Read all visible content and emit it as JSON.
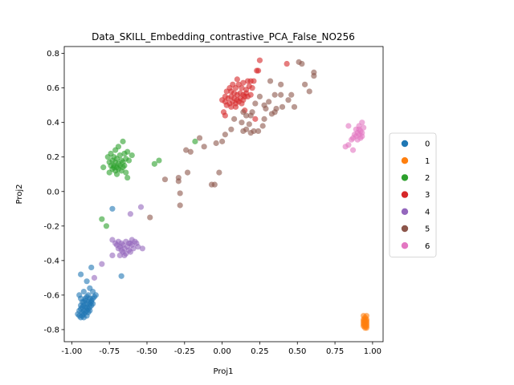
{
  "chart_data": {
    "type": "scatter",
    "title": "Data_SKILL_Embedding_contrastive_PCA_False_NO256",
    "xlabel": "Proj1",
    "ylabel": "Proj2",
    "xlim": [
      -1.05,
      1.07
    ],
    "ylim": [
      -0.87,
      0.84
    ],
    "xticks": [
      "-1.00",
      "-0.75",
      "-0.50",
      "-0.25",
      "0.00",
      "0.25",
      "0.50",
      "0.75",
      "1.00"
    ],
    "xtick_values": [
      -1.0,
      -0.75,
      -0.5,
      -0.25,
      0.0,
      0.25,
      0.5,
      0.75,
      1.0
    ],
    "yticks": [
      "-0.8",
      "-0.6",
      "-0.4",
      "-0.2",
      "0.0",
      "0.2",
      "0.4",
      "0.6",
      "0.8"
    ],
    "ytick_values": [
      -0.8,
      -0.6,
      -0.4,
      -0.2,
      0.0,
      0.2,
      0.4,
      0.6,
      0.8
    ],
    "legend_position": "center-right outside",
    "grid": false,
    "series": [
      {
        "name": "0",
        "color": "#1f77b4",
        "points": [
          [
            -0.94,
            -0.48
          ],
          [
            -0.87,
            -0.44
          ],
          [
            -0.73,
            -0.1
          ],
          [
            -0.67,
            -0.49
          ],
          [
            -0.9,
            -0.52
          ],
          [
            -0.86,
            -0.58
          ],
          [
            -0.88,
            -0.56
          ],
          [
            -0.95,
            -0.6
          ],
          [
            -0.92,
            -0.58
          ],
          [
            -0.94,
            -0.62
          ],
          [
            -0.93,
            -0.64
          ],
          [
            -0.92,
            -0.66
          ],
          [
            -0.91,
            -0.63
          ],
          [
            -0.9,
            -0.61
          ],
          [
            -0.89,
            -0.6
          ],
          [
            -0.88,
            -0.62
          ],
          [
            -0.87,
            -0.63
          ],
          [
            -0.86,
            -0.62
          ],
          [
            -0.85,
            -0.61
          ],
          [
            -0.84,
            -0.6
          ],
          [
            -0.94,
            -0.68
          ],
          [
            -0.93,
            -0.7
          ],
          [
            -0.92,
            -0.71
          ],
          [
            -0.91,
            -0.7
          ],
          [
            -0.9,
            -0.69
          ],
          [
            -0.89,
            -0.68
          ],
          [
            -0.88,
            -0.67
          ],
          [
            -0.87,
            -0.66
          ],
          [
            -0.86,
            -0.65
          ],
          [
            -0.95,
            -0.72
          ],
          [
            -0.94,
            -0.73
          ],
          [
            -0.93,
            -0.72
          ],
          [
            -0.92,
            -0.69
          ],
          [
            -0.91,
            -0.67
          ],
          [
            -0.9,
            -0.65
          ],
          [
            -0.89,
            -0.64
          ],
          [
            -0.88,
            -0.65
          ],
          [
            -0.95,
            -0.69
          ],
          [
            -0.96,
            -0.71
          ],
          [
            -0.93,
            -0.67
          ],
          [
            -0.92,
            -0.73
          ],
          [
            -0.9,
            -0.72
          ],
          [
            -0.89,
            -0.7
          ],
          [
            -0.87,
            -0.64
          ],
          [
            -0.91,
            -0.62
          ],
          [
            -0.9,
            -0.67
          ],
          [
            -0.94,
            -0.66
          ],
          [
            -0.92,
            -0.64
          ],
          [
            -0.88,
            -0.69
          ]
        ]
      },
      {
        "name": "1",
        "color": "#ff7f0e",
        "points": [
          [
            0.94,
            -0.72
          ],
          [
            0.95,
            -0.73
          ],
          [
            0.96,
            -0.72
          ],
          [
            0.94,
            -0.74
          ],
          [
            0.95,
            -0.75
          ],
          [
            0.96,
            -0.74
          ],
          [
            0.94,
            -0.76
          ],
          [
            0.95,
            -0.77
          ],
          [
            0.96,
            -0.76
          ],
          [
            0.95,
            -0.78
          ],
          [
            0.96,
            -0.79
          ],
          [
            0.94,
            -0.78
          ],
          [
            0.95,
            -0.76
          ],
          [
            0.96,
            -0.77
          ],
          [
            0.95,
            -0.74
          ],
          [
            0.94,
            -0.77
          ],
          [
            0.96,
            -0.75
          ],
          [
            0.95,
            -0.79
          ],
          [
            0.94,
            -0.75
          ],
          [
            0.96,
            -0.78
          ]
        ]
      },
      {
        "name": "2",
        "color": "#2ca02c",
        "points": [
          [
            -0.66,
            0.29
          ],
          [
            -0.69,
            0.26
          ],
          [
            -0.71,
            0.24
          ],
          [
            -0.63,
            0.23
          ],
          [
            -0.74,
            0.22
          ],
          [
            -0.6,
            0.21
          ],
          [
            -0.76,
            0.2
          ],
          [
            -0.72,
            0.2
          ],
          [
            -0.68,
            0.21
          ],
          [
            -0.65,
            0.22
          ],
          [
            -0.73,
            0.18
          ],
          [
            -0.7,
            0.19
          ],
          [
            -0.67,
            0.18
          ],
          [
            -0.64,
            0.19
          ],
          [
            -0.75,
            0.17
          ],
          [
            -0.71,
            0.17
          ],
          [
            -0.69,
            0.16
          ],
          [
            -0.66,
            0.17
          ],
          [
            -0.62,
            0.18
          ],
          [
            -0.79,
            0.14
          ],
          [
            -0.74,
            0.15
          ],
          [
            -0.72,
            0.15
          ],
          [
            -0.7,
            0.14
          ],
          [
            -0.68,
            0.15
          ],
          [
            -0.65,
            0.15
          ],
          [
            -0.73,
            0.13
          ],
          [
            -0.71,
            0.12
          ],
          [
            -0.69,
            0.13
          ],
          [
            -0.67,
            0.12
          ],
          [
            -0.7,
            0.1
          ],
          [
            -0.75,
            0.11
          ],
          [
            -0.64,
            0.11
          ],
          [
            -0.63,
            0.08
          ],
          [
            -0.72,
            0.14
          ],
          [
            -0.66,
            0.14
          ],
          [
            -0.45,
            0.16
          ],
          [
            -0.42,
            0.18
          ],
          [
            -0.18,
            0.29
          ],
          [
            -0.8,
            -0.16
          ],
          [
            -0.77,
            -0.2
          ]
        ]
      },
      {
        "name": "3",
        "color": "#d62728",
        "points": [
          [
            0.25,
            0.76
          ],
          [
            0.43,
            0.74
          ],
          [
            0.23,
            0.7
          ],
          [
            0.24,
            0.7
          ],
          [
            0.1,
            0.65
          ],
          [
            0.17,
            0.64
          ],
          [
            0.19,
            0.64
          ],
          [
            0.21,
            0.64
          ],
          [
            0.11,
            0.62
          ],
          [
            0.14,
            0.63
          ],
          [
            0.07,
            0.62
          ],
          [
            0.05,
            0.6
          ],
          [
            0.09,
            0.6
          ],
          [
            0.13,
            0.6
          ],
          [
            0.16,
            0.59
          ],
          [
            0.18,
            0.61
          ],
          [
            0.03,
            0.58
          ],
          [
            0.06,
            0.58
          ],
          [
            0.08,
            0.57
          ],
          [
            0.1,
            0.56
          ],
          [
            0.12,
            0.57
          ],
          [
            0.14,
            0.56
          ],
          [
            0.16,
            0.57
          ],
          [
            0.02,
            0.55
          ],
          [
            0.04,
            0.54
          ],
          [
            0.06,
            0.55
          ],
          [
            0.08,
            0.54
          ],
          [
            0.1,
            0.53
          ],
          [
            0.12,
            0.54
          ],
          [
            0.14,
            0.53
          ],
          [
            0.0,
            0.53
          ],
          [
            0.02,
            0.52
          ],
          [
            0.05,
            0.51
          ],
          [
            0.07,
            0.52
          ],
          [
            0.09,
            0.51
          ],
          [
            0.11,
            0.52
          ],
          [
            0.13,
            0.51
          ],
          [
            0.03,
            0.5
          ],
          [
            0.06,
            0.49
          ],
          [
            0.09,
            0.49
          ],
          [
            0.15,
            0.55
          ],
          [
            0.17,
            0.55
          ],
          [
            0.19,
            0.56
          ],
          [
            0.01,
            0.46
          ],
          [
            0.02,
            0.44
          ],
          [
            0.15,
            0.47
          ],
          [
            0.22,
            0.42
          ],
          [
            0.2,
            0.6
          ]
        ]
      },
      {
        "name": "4",
        "color": "#9467bd",
        "points": [
          [
            -0.54,
            -0.09
          ],
          [
            -0.61,
            -0.13
          ],
          [
            -0.73,
            -0.28
          ],
          [
            -0.69,
            -0.29
          ],
          [
            -0.67,
            -0.3
          ],
          [
            -0.64,
            -0.29
          ],
          [
            -0.61,
            -0.3
          ],
          [
            -0.58,
            -0.29
          ],
          [
            -0.7,
            -0.31
          ],
          [
            -0.68,
            -0.32
          ],
          [
            -0.66,
            -0.31
          ],
          [
            -0.63,
            -0.32
          ],
          [
            -0.6,
            -0.31
          ],
          [
            -0.57,
            -0.3
          ],
          [
            -0.69,
            -0.33
          ],
          [
            -0.67,
            -0.34
          ],
          [
            -0.65,
            -0.33
          ],
          [
            -0.62,
            -0.34
          ],
          [
            -0.59,
            -0.33
          ],
          [
            -0.66,
            -0.35
          ],
          [
            -0.64,
            -0.36
          ],
          [
            -0.61,
            -0.35
          ],
          [
            -0.68,
            -0.37
          ],
          [
            -0.65,
            -0.37
          ],
          [
            -0.73,
            -0.37
          ],
          [
            -0.53,
            -0.33
          ],
          [
            -0.56,
            -0.32
          ],
          [
            -0.8,
            -0.42
          ],
          [
            -0.85,
            -0.5
          ],
          [
            -0.62,
            -0.3
          ],
          [
            -0.6,
            -0.28
          ],
          [
            -0.71,
            -0.3
          ]
        ]
      },
      {
        "name": "5",
        "color": "#8c564b",
        "points": [
          [
            0.51,
            0.75
          ],
          [
            0.53,
            0.74
          ],
          [
            0.61,
            0.69
          ],
          [
            0.61,
            0.67
          ],
          [
            0.32,
            0.64
          ],
          [
            0.39,
            0.62
          ],
          [
            0.55,
            0.62
          ],
          [
            0.58,
            0.58
          ],
          [
            0.35,
            0.56
          ],
          [
            0.39,
            0.56
          ],
          [
            0.46,
            0.56
          ],
          [
            0.25,
            0.55
          ],
          [
            0.31,
            0.52
          ],
          [
            0.44,
            0.53
          ],
          [
            0.22,
            0.51
          ],
          [
            0.28,
            0.5
          ],
          [
            0.4,
            0.49
          ],
          [
            0.48,
            0.49
          ],
          [
            0.29,
            0.48
          ],
          [
            0.36,
            0.48
          ],
          [
            0.14,
            0.46
          ],
          [
            0.2,
            0.46
          ],
          [
            0.35,
            0.46
          ],
          [
            0.33,
            0.45
          ],
          [
            0.16,
            0.44
          ],
          [
            0.19,
            0.44
          ],
          [
            0.08,
            0.42
          ],
          [
            0.28,
            0.42
          ],
          [
            0.13,
            0.4
          ],
          [
            0.18,
            0.39
          ],
          [
            0.27,
            0.38
          ],
          [
            0.16,
            0.36
          ],
          [
            0.21,
            0.35
          ],
          [
            0.24,
            0.35
          ],
          [
            0.19,
            0.34
          ],
          [
            0.14,
            0.35
          ],
          [
            0.02,
            0.33
          ],
          [
            0.06,
            0.36
          ],
          [
            -0.15,
            0.31
          ],
          [
            0.0,
            0.29
          ],
          [
            -0.04,
            0.28
          ],
          [
            -0.12,
            0.26
          ],
          [
            -0.24,
            0.24
          ],
          [
            -0.21,
            0.23
          ],
          [
            -0.02,
            0.11
          ],
          [
            -0.23,
            0.11
          ],
          [
            -0.38,
            0.07
          ],
          [
            -0.29,
            0.08
          ],
          [
            -0.29,
            0.06
          ],
          [
            -0.05,
            0.04
          ],
          [
            -0.07,
            0.04
          ],
          [
            -0.28,
            -0.01
          ],
          [
            -0.28,
            -0.08
          ],
          [
            -0.48,
            -0.15
          ]
        ]
      },
      {
        "name": "6",
        "color": "#e377c2",
        "points": [
          [
            0.93,
            0.4
          ],
          [
            0.91,
            0.38
          ],
          [
            0.94,
            0.37
          ],
          [
            0.84,
            0.38
          ],
          [
            0.92,
            0.35
          ],
          [
            0.9,
            0.34
          ],
          [
            0.93,
            0.34
          ],
          [
            0.88,
            0.33
          ],
          [
            0.91,
            0.33
          ],
          [
            0.89,
            0.32
          ],
          [
            0.92,
            0.31
          ],
          [
            0.87,
            0.31
          ],
          [
            0.9,
            0.3
          ],
          [
            0.86,
            0.3
          ],
          [
            0.93,
            0.32
          ],
          [
            0.82,
            0.26
          ],
          [
            0.84,
            0.27
          ],
          [
            0.87,
            0.24
          ],
          [
            0.89,
            0.36
          ],
          [
            0.91,
            0.36
          ]
        ]
      }
    ]
  }
}
